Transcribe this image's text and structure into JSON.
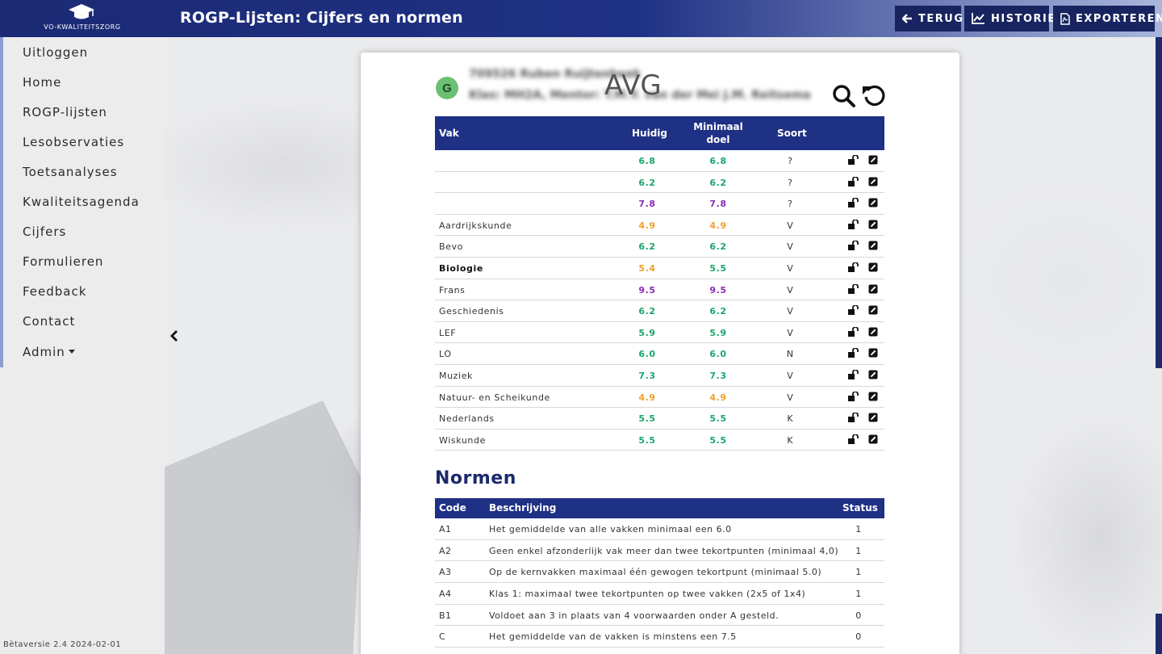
{
  "header": {
    "logo_text": "VO-KWALITEITSZORG",
    "title": "ROGP-Lijsten: Cijfers en normen",
    "buttons": [
      {
        "label": "TERUG",
        "icon": "arrow-left-icon"
      },
      {
        "label": "HISTORIE",
        "icon": "line-chart-icon"
      },
      {
        "label": "EXPORTEREN",
        "icon": "pdf-file-icon"
      }
    ]
  },
  "sidebar": {
    "items": [
      {
        "label": "Uitloggen"
      },
      {
        "label": "Home"
      },
      {
        "label": "ROGP-lijsten"
      },
      {
        "label": "Lesobservaties"
      },
      {
        "label": "Toetsanalyses"
      },
      {
        "label": "Kwaliteitsagenda"
      },
      {
        "label": "Cijfers"
      },
      {
        "label": "Formulieren"
      },
      {
        "label": "Feedback"
      },
      {
        "label": "Contact"
      },
      {
        "label": "Admin"
      }
    ],
    "version": "Bètaversie 2.4 2024-02-01"
  },
  "student": {
    "avatar_letter": "G",
    "name_line": "709526 Ruben Ruijtenbeek",
    "class_line": "Klas: MH2A, Mentor: T.M.Y. van der Mei J.M. Reitsema",
    "avg_label": "AVG"
  },
  "grades": {
    "columns": {
      "vak": "Vak",
      "huidig": "Huidig",
      "minimaal_doel": "Minimaal doel",
      "soort": "Soort"
    },
    "rows": [
      {
        "vak": "",
        "huidig": "6.8",
        "min": "6.8",
        "soort": "?",
        "color": "#1aa56b",
        "bold": false
      },
      {
        "vak": "",
        "huidig": "6.2",
        "min": "6.2",
        "soort": "?",
        "color": "#1aa56b",
        "bold": false
      },
      {
        "vak": "",
        "huidig": "7.8",
        "min": "7.8",
        "soort": "?",
        "color": "#8a2bb8",
        "bold": false
      },
      {
        "vak": "Aardrijkskunde",
        "huidig": "4.9",
        "min": "4.9",
        "soort": "V",
        "color": "#f0a02a",
        "bold": false
      },
      {
        "vak": "Bevo",
        "huidig": "6.2",
        "min": "6.2",
        "soort": "V",
        "color": "#1aa56b",
        "bold": false
      },
      {
        "vak": "Biologie",
        "huidig": "5.4",
        "min": "5.5",
        "soort": "V",
        "color": "#f0a02a",
        "min_color": "#1aa56b",
        "bold": true
      },
      {
        "vak": "Frans",
        "huidig": "9.5",
        "min": "9.5",
        "soort": "V",
        "color": "#8a2bb8",
        "bold": false
      },
      {
        "vak": "Geschiedenis",
        "huidig": "6.2",
        "min": "6.2",
        "soort": "V",
        "color": "#1aa56b",
        "bold": false
      },
      {
        "vak": "LEF",
        "huidig": "5.9",
        "min": "5.9",
        "soort": "V",
        "color": "#1aa56b",
        "bold": false
      },
      {
        "vak": "LO",
        "huidig": "6.0",
        "min": "6.0",
        "soort": "N",
        "color": "#1aa56b",
        "bold": false
      },
      {
        "vak": "Muziek",
        "huidig": "7.3",
        "min": "7.3",
        "soort": "V",
        "color": "#1aa56b",
        "bold": false
      },
      {
        "vak": "Natuur- en Scheikunde",
        "huidig": "4.9",
        "min": "4.9",
        "soort": "V",
        "color": "#f0a02a",
        "bold": false
      },
      {
        "vak": "Nederlands",
        "huidig": "5.5",
        "min": "5.5",
        "soort": "K",
        "color": "#1aa56b",
        "bold": false
      },
      {
        "vak": "Wiskunde",
        "huidig": "5.5",
        "min": "5.5",
        "soort": "K",
        "color": "#1aa56b",
        "bold": false
      }
    ]
  },
  "normen": {
    "title": "Normen",
    "columns": {
      "code": "Code",
      "beschrijving": "Beschrijving",
      "status": "Status"
    },
    "rows": [
      {
        "code": "A1",
        "desc": "Het gemiddelde van alle vakken minimaal een 6.0",
        "status": "1"
      },
      {
        "code": "A2",
        "desc": "Geen enkel afzonderlijk vak meer dan twee tekortpunten (minimaal 4,0)",
        "status": "1"
      },
      {
        "code": "A3",
        "desc": "Op de kernvakken maximaal één gewogen tekortpunt (minimaal 5.0)",
        "status": "1"
      },
      {
        "code": "A4",
        "desc": "Klas 1: maximaal twee tekortpunten op twee vakken (2x5 of 1x4)",
        "status": "1"
      },
      {
        "code": "B1",
        "desc": "Voldoet aan 3 in plaats van 4 voorwaarden onder A gesteld.",
        "status": "0"
      },
      {
        "code": "C",
        "desc": "Het gemiddelde van de vakken is minstens een 7.5",
        "status": "0"
      }
    ]
  }
}
